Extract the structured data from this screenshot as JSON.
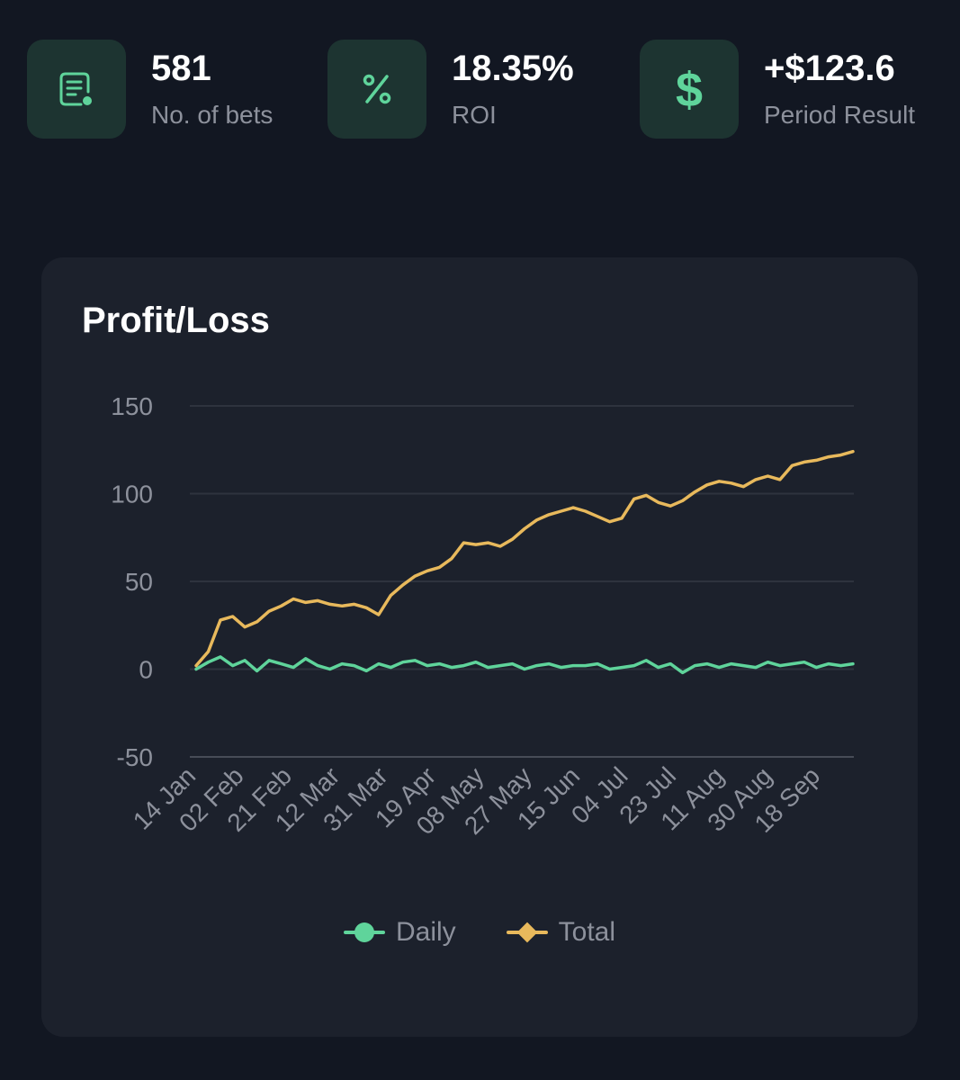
{
  "stats": [
    {
      "icon": "receipt-icon",
      "value": "581",
      "label": "No. of bets"
    },
    {
      "icon": "percent-icon",
      "value": "18.35%",
      "label": "ROI"
    },
    {
      "icon": "dollar-icon",
      "value": "+$123.6",
      "label": "Period Result"
    }
  ],
  "colors": {
    "background": "#121722",
    "card": "#1c212c",
    "accent": "#5fd49b",
    "daily": "#5fd49b",
    "total": "#e8b95c",
    "muted": "#8d919c"
  },
  "chart_data": {
    "type": "line",
    "title": "Profit/Loss",
    "x_tick_labels": [
      "14 Jan",
      "02 Feb",
      "21 Feb",
      "12 Mar",
      "31 Mar",
      "19 Apr",
      "08 May",
      "27 May",
      "15 Jun",
      "04 Jul",
      "23 Jul",
      "11 Aug",
      "30 Aug",
      "18 Sep"
    ],
    "x": [
      "14 Jan",
      "18 Jan",
      "23 Jan",
      "28 Jan",
      "02 Feb",
      "07 Feb",
      "12 Feb",
      "17 Feb",
      "21 Feb",
      "26 Feb",
      "03 Mar",
      "08 Mar",
      "12 Mar",
      "17 Mar",
      "22 Mar",
      "27 Mar",
      "31 Mar",
      "05 Apr",
      "10 Apr",
      "15 Apr",
      "19 Apr",
      "24 Apr",
      "29 Apr",
      "04 May",
      "08 May",
      "13 May",
      "18 May",
      "23 May",
      "27 May",
      "01 Jun",
      "06 Jun",
      "11 Jun",
      "15 Jun",
      "20 Jun",
      "25 Jun",
      "30 Jun",
      "04 Jul",
      "09 Jul",
      "14 Jul",
      "19 Jul",
      "23 Jul",
      "28 Jul",
      "02 Aug",
      "07 Aug",
      "11 Aug",
      "16 Aug",
      "21 Aug",
      "26 Aug",
      "30 Aug",
      "04 Sep",
      "09 Sep",
      "14 Sep",
      "18 Sep",
      "23 Sep",
      "28 Sep"
    ],
    "series": [
      {
        "name": "Daily",
        "values": [
          0,
          4,
          7,
          2,
          5,
          -1,
          5,
          3,
          1,
          6,
          2,
          0,
          3,
          2,
          -1,
          3,
          1,
          4,
          5,
          2,
          3,
          1,
          2,
          4,
          1,
          2,
          3,
          0,
          2,
          3,
          1,
          2,
          2,
          3,
          0,
          1,
          2,
          5,
          1,
          3,
          -2,
          2,
          3,
          1,
          3,
          2,
          1,
          4,
          2,
          3,
          4,
          1,
          3,
          2,
          3
        ]
      },
      {
        "name": "Total",
        "values": [
          2,
          10,
          28,
          30,
          24,
          27,
          33,
          36,
          40,
          38,
          39,
          37,
          36,
          37,
          35,
          31,
          42,
          48,
          53,
          56,
          58,
          63,
          72,
          71,
          72,
          70,
          74,
          80,
          85,
          88,
          90,
          92,
          90,
          87,
          84,
          86,
          97,
          99,
          95,
          93,
          96,
          101,
          105,
          107,
          106,
          104,
          108,
          110,
          108,
          116,
          118,
          119,
          121,
          122,
          124
        ]
      }
    ],
    "ylim": [
      -50,
      150
    ],
    "y_ticks": [
      -50,
      0,
      50,
      100,
      150
    ],
    "grid": true,
    "legend": "bottom-center"
  }
}
